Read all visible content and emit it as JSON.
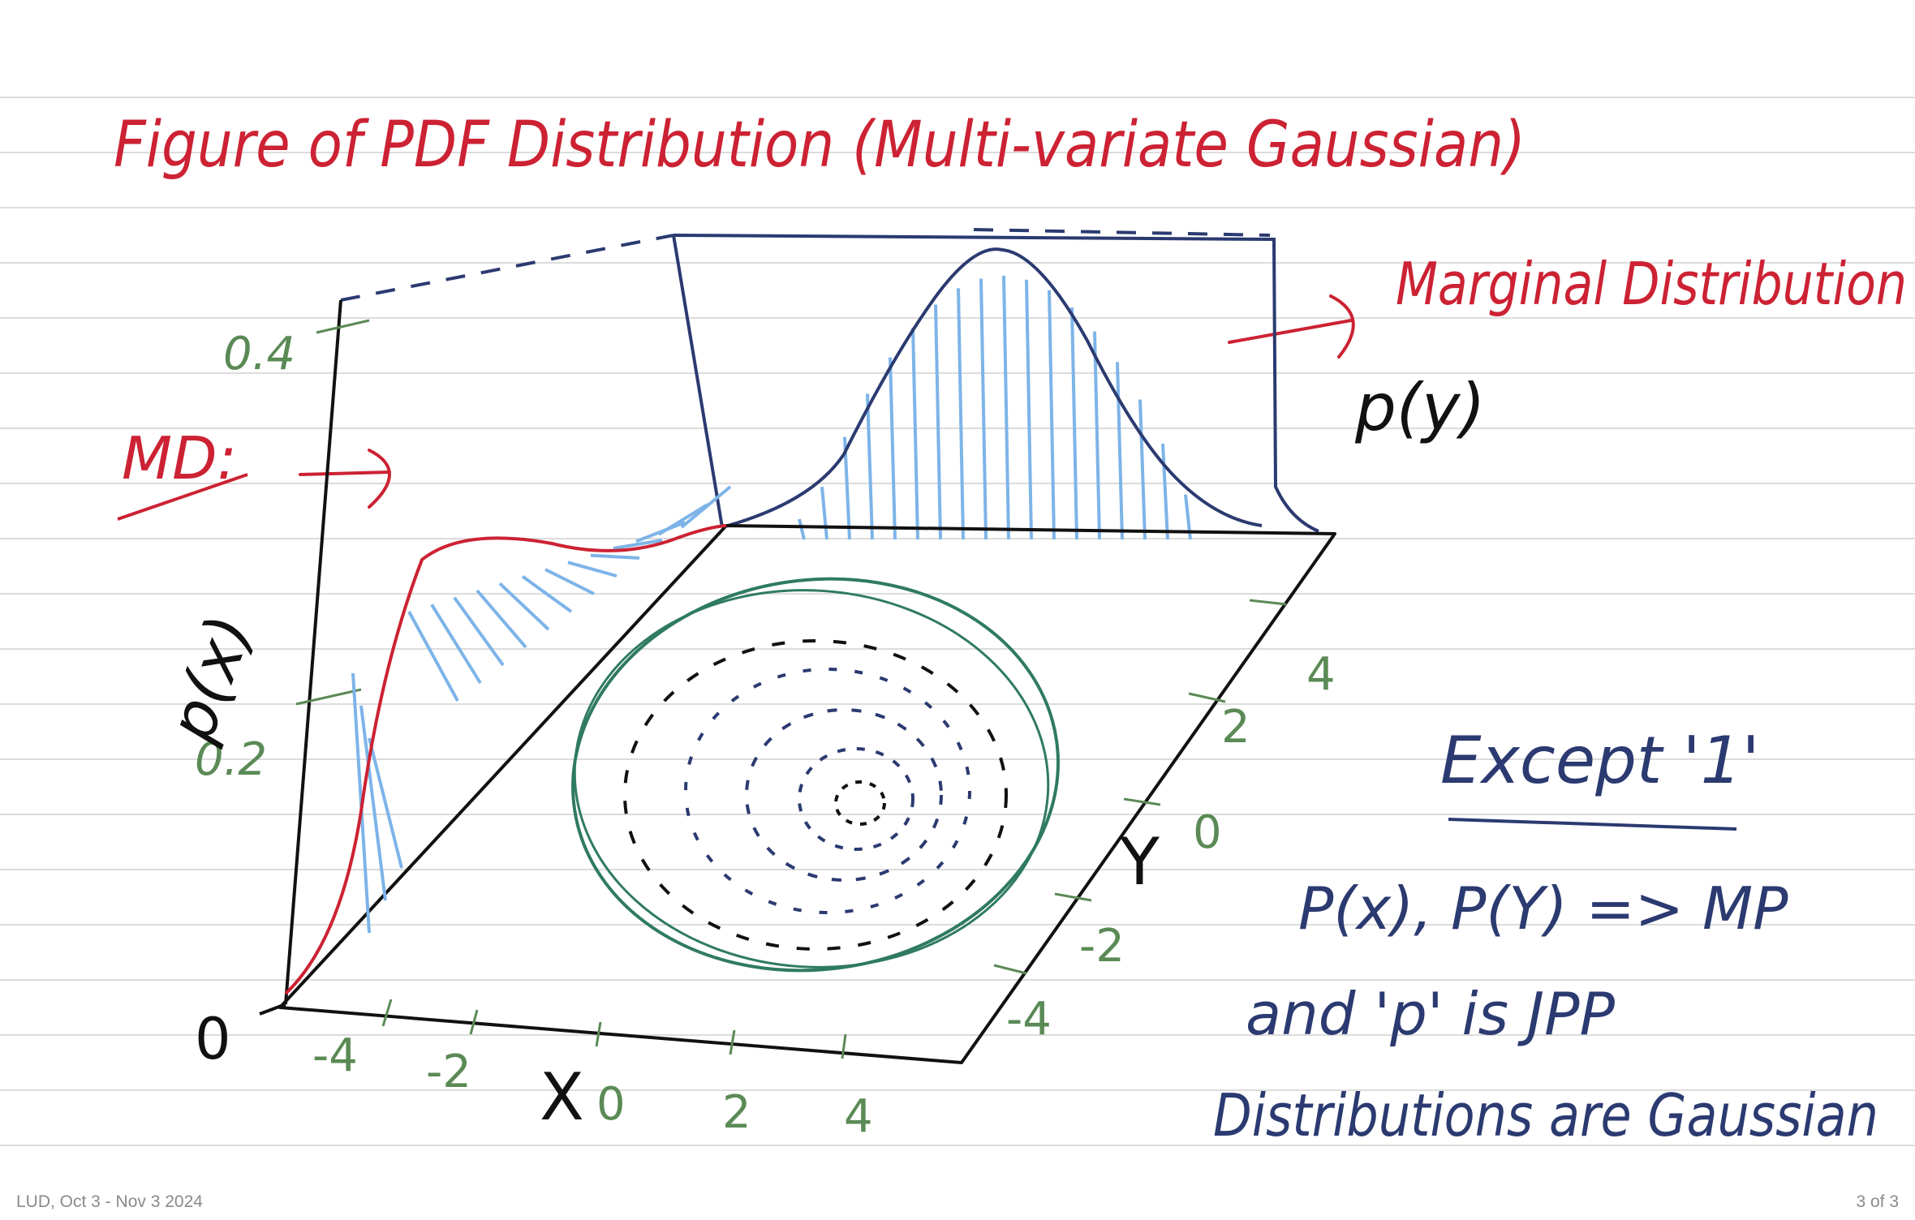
{
  "title": "Figure of PDF Distribution (Multi-variate Gaussian)",
  "md_label": "MD:",
  "marginal_label": "Marginal Distribution",
  "py_label": "p(y)",
  "px_label": "p(x)",
  "origin_label": "0",
  "x_axis_name": "X",
  "y_axis_name": "Y",
  "px_ticks": [
    "0.4",
    "0.2"
  ],
  "x_ticks": [
    "-4",
    "-2",
    "0",
    "2",
    "4"
  ],
  "y_ticks": [
    "4",
    "2",
    "0",
    "-2",
    "-4"
  ],
  "notes": {
    "heading": "Except '1'",
    "line1": "P(x), P(Y) => MP",
    "line2": "and 'p' is JPP",
    "line3": "Distributions are Gaussian"
  },
  "footer": {
    "left": "LUD, Oct 3 - Nov 3 2024",
    "right": "3 of 3"
  },
  "colors": {
    "red": "#cc2233",
    "navy": "#2b3a70",
    "green": "#5a8a55",
    "teal": "#2f7a62",
    "lightblue": "#7db4e8",
    "ink": "#111111",
    "rule": "#dcdcdc"
  }
}
